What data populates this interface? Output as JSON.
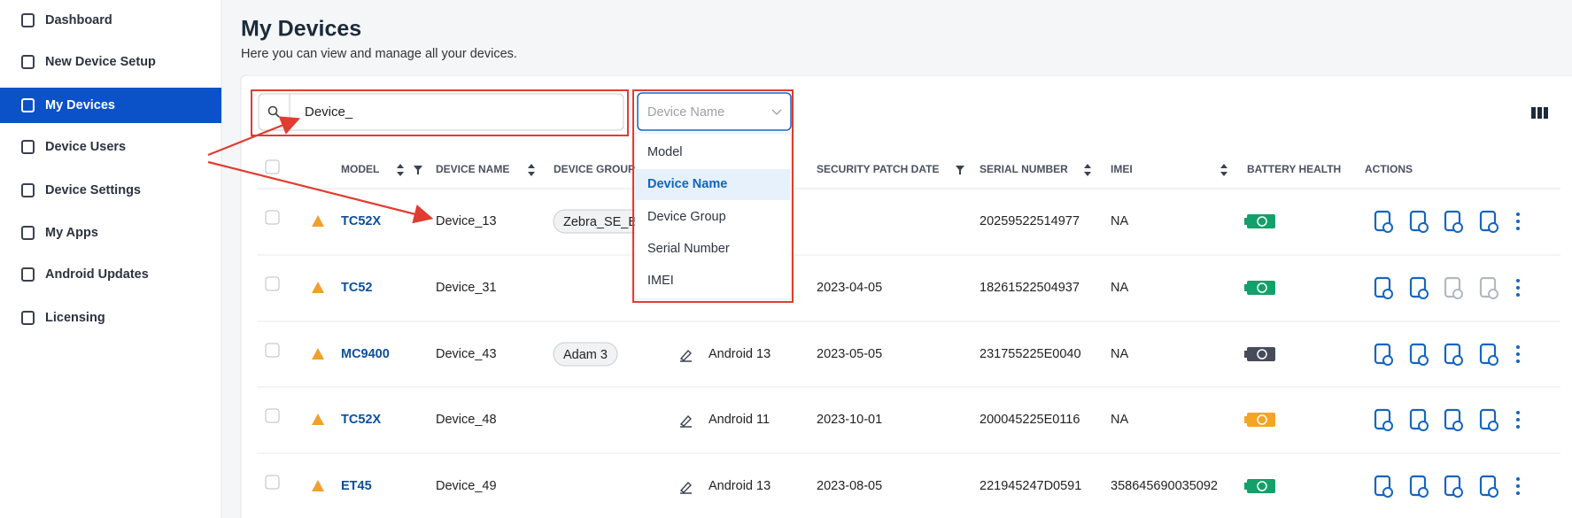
{
  "sidebar": {
    "items": [
      "Dashboard",
      "New Device Setup",
      "My Devices",
      "Device Users",
      "Device Settings",
      "My Apps",
      "Android Updates",
      "Licensing"
    ],
    "active": 2
  },
  "header": {
    "title": "My Devices",
    "subtitle": "Here you can view and manage all your devices."
  },
  "search": {
    "value": "Device_"
  },
  "filter": {
    "placeholder": "Device Name",
    "options": [
      "Model",
      "Device Name",
      "Device Group",
      "Serial Number",
      "IMEI"
    ],
    "selected": 1
  },
  "table": {
    "columns": [
      "MODEL",
      "DEVICE NAME",
      "DEVICE GROUP",
      "SECURITY PATCH DATE",
      "SERIAL NUMBER",
      "IMEI",
      "BATTERY HEALTH",
      "ACTIONS"
    ],
    "rows": [
      {
        "model": "TC52X",
        "device_name": "Device_13",
        "group": "Zebra_SE_BN",
        "os": null,
        "patch": null,
        "serial": "20259522514977",
        "imei": "NA",
        "battery_color": "#14a06a",
        "actions_enabled": [
          true,
          true,
          true,
          true
        ]
      },
      {
        "model": "TC52",
        "device_name": "Device_31",
        "group": null,
        "os": null,
        "patch": "2023-04-05",
        "serial": "18261522504937",
        "imei": "NA",
        "battery_color": "#14a06a",
        "actions_enabled": [
          true,
          true,
          false,
          false
        ]
      },
      {
        "model": "MC9400",
        "device_name": "Device_43",
        "group": "Adam 3",
        "os": "Android 13",
        "patch": "2023-05-05",
        "serial": "231755225E0040",
        "imei": "NA",
        "battery_color": "#464c59",
        "actions_enabled": [
          true,
          true,
          true,
          true
        ]
      },
      {
        "model": "TC52X",
        "device_name": "Device_48",
        "group": null,
        "os": "Android 11",
        "patch": "2023-10-01",
        "serial": "200045225E0116",
        "imei": "NA",
        "battery_color": "#f5a524",
        "actions_enabled": [
          true,
          true,
          true,
          true
        ]
      },
      {
        "model": "ET45",
        "device_name": "Device_49",
        "group": null,
        "os": "Android 13",
        "patch": "2023-08-05",
        "serial": "221945247D0591",
        "imei": "358645690035092",
        "battery_color": "#14a06a",
        "actions_enabled": [
          true,
          true,
          true,
          true
        ]
      }
    ]
  }
}
